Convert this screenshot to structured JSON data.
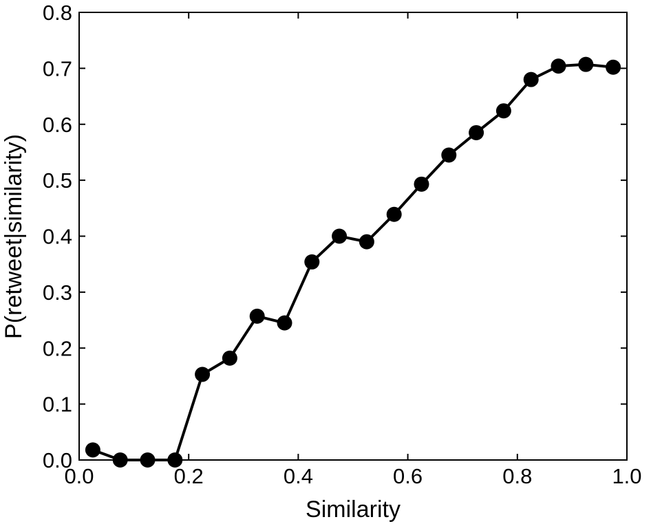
{
  "chart_data": {
    "type": "line",
    "title": "",
    "xlabel": "Similarity",
    "ylabel": "P(retweet|similarity)",
    "xlim": [
      0.0,
      1.0
    ],
    "ylim": [
      0.0,
      0.8
    ],
    "xticks": [
      0.0,
      0.2,
      0.4,
      0.6,
      0.8,
      1.0
    ],
    "xtick_labels": [
      "0.0",
      "0.2",
      "0.4",
      "0.6",
      "0.8",
      "1.0"
    ],
    "yticks": [
      0.0,
      0.1,
      0.2,
      0.3,
      0.4,
      0.5,
      0.6,
      0.7,
      0.8
    ],
    "ytick_labels": [
      "0.0",
      "0.1",
      "0.2",
      "0.3",
      "0.4",
      "0.5",
      "0.6",
      "0.7",
      "0.8"
    ],
    "grid": false,
    "line_color": "#000000",
    "marker": "circle",
    "series": [
      {
        "x": [
          0.025,
          0.075,
          0.125,
          0.175,
          0.225,
          0.275,
          0.325,
          0.375,
          0.425,
          0.475,
          0.525,
          0.575,
          0.625,
          0.675,
          0.725,
          0.775,
          0.825,
          0.875,
          0.925,
          0.975
        ],
        "y": [
          0.018,
          0.0,
          0.0,
          0.0,
          0.153,
          0.182,
          0.257,
          0.245,
          0.354,
          0.4,
          0.39,
          0.439,
          0.493,
          0.545,
          0.585,
          0.624,
          0.68,
          0.704,
          0.707,
          0.702
        ]
      }
    ]
  }
}
